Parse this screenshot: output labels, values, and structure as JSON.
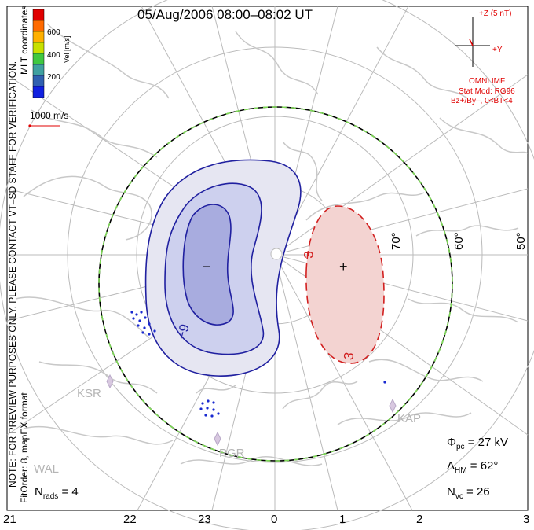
{
  "title": "05/Aug/2006 08:00–08:02 UT",
  "colorbar": {
    "ticks": [
      "600",
      "400",
      "200"
    ],
    "label": "Vel [m/s]",
    "colors": [
      "#e00000",
      "#ff6a00",
      "#ffb000",
      "#c8e000",
      "#40c840",
      "#40a0a0",
      "#3060b0",
      "#1020e0"
    ]
  },
  "vector_scale": {
    "label": "1000 m/s",
    "color": "#e00000"
  },
  "side_text": {
    "mlt": "MLT coordinates",
    "preview": "NOTE: FOR PREVIEW PURPOSES ONLY. PLEASE CONTACT VT–SD STAFF FOR VERIFICATION.",
    "fit": "FitOrder: 8, mapEX format"
  },
  "imf": {
    "clock_label_z": "+Z (5 nT)",
    "clock_label_y": "+Y",
    "source": "OMNI IMF",
    "model": "Stat Mod: RG96",
    "condition": "Bz+/By–, 0<BT<4"
  },
  "latitude_labels": [
    "70°",
    "60°",
    "50°"
  ],
  "stations": [
    "KSR",
    "PGR",
    "KAP",
    "WAL"
  ],
  "contours": {
    "negative_label": "−9",
    "positive_label_1": "3",
    "positive_label_2": "3",
    "min_marker": "−",
    "max_marker": "+"
  },
  "stats": {
    "phi_symbol": "Φ",
    "phi_sub": "pc",
    "phi_value": "= 27 kV",
    "lambda_symbol": "Λ",
    "lambda_sub": "HM",
    "lambda_value": "= 62°",
    "nvc_symbol": "N",
    "nvc_sub": "vc",
    "nvc_value": "= 26",
    "nrads_symbol": "N",
    "nrads_sub": "rads",
    "nrads_value": "= 4"
  },
  "mlt_hours": [
    "21",
    "22",
    "23",
    "0",
    "1",
    "2",
    "3"
  ]
}
